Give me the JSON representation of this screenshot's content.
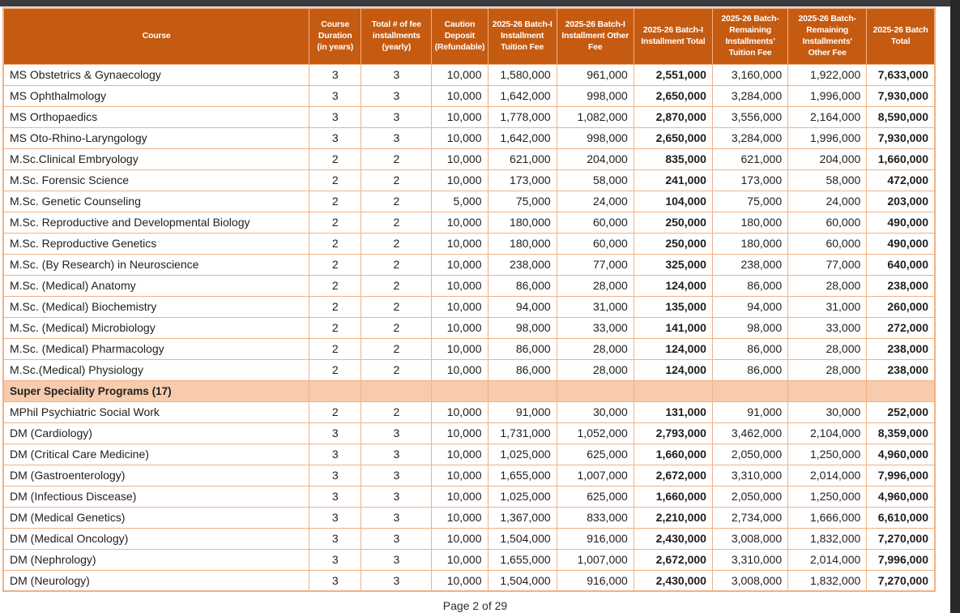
{
  "window": {
    "top_bar_color": "#3b3b3d",
    "right_bar_color": "#29292c"
  },
  "colors": {
    "header_bg": "#C55A11",
    "grid_border": "#F2B183",
    "section_bg": "#F7CBAC",
    "header_text": "#FFFFFF",
    "body_text": "#1E1E1E"
  },
  "footer": {
    "page_label": "Page 2 of 29"
  },
  "table": {
    "headers": [
      "Course",
      "Course\nDuration\n(in years)",
      "Total # of fee\ninstallments\n(yearly)",
      "Caution\nDeposit\n(Refundable)",
      "2025-26 Batch-I\nInstallment\nTuition Fee",
      "2025-26  Batch-I\nInstallment Other\nFee",
      "2025-26  Batch-I\nInstallment Total",
      "2025-26 Batch-\nRemaining\nInstallments'\nTuition Fee",
      "2025-26 Batch-\nRemaining\nInstallments'\nOther Fee",
      "2025-26 Batch\nTotal"
    ],
    "rows": [
      {
        "type": "data",
        "cells": [
          "MS Obstetrics & Gynaecology",
          "3",
          "3",
          "10,000",
          "1,580,000",
          "961,000",
          "2,551,000",
          "3,160,000",
          "1,922,000",
          "7,633,000"
        ]
      },
      {
        "type": "data",
        "cells": [
          "MS Ophthalmology",
          "3",
          "3",
          "10,000",
          "1,642,000",
          "998,000",
          "2,650,000",
          "3,284,000",
          "1,996,000",
          "7,930,000"
        ]
      },
      {
        "type": "data",
        "cells": [
          "MS Orthopaedics",
          "3",
          "3",
          "10,000",
          "1,778,000",
          "1,082,000",
          "2,870,000",
          "3,556,000",
          "2,164,000",
          "8,590,000"
        ]
      },
      {
        "type": "data",
        "cells": [
          "MS Oto-Rhino-Laryngology",
          "3",
          "3",
          "10,000",
          "1,642,000",
          "998,000",
          "2,650,000",
          "3,284,000",
          "1,996,000",
          "7,930,000"
        ]
      },
      {
        "type": "data",
        "cells": [
          "M.Sc.Clinical Embryology",
          "2",
          "2",
          "10,000",
          "621,000",
          "204,000",
          "835,000",
          "621,000",
          "204,000",
          "1,660,000"
        ]
      },
      {
        "type": "data",
        "cells": [
          "M.Sc. Forensic Science",
          "2",
          "2",
          "10,000",
          "173,000",
          "58,000",
          "241,000",
          "173,000",
          "58,000",
          "472,000"
        ]
      },
      {
        "type": "data",
        "cells": [
          "M.Sc. Genetic Counseling",
          "2",
          "2",
          "5,000",
          "75,000",
          "24,000",
          "104,000",
          "75,000",
          "24,000",
          "203,000"
        ]
      },
      {
        "type": "data",
        "cells": [
          "M.Sc. Reproductive and Developmental Biology",
          "2",
          "2",
          "10,000",
          "180,000",
          "60,000",
          "250,000",
          "180,000",
          "60,000",
          "490,000"
        ]
      },
      {
        "type": "data",
        "cells": [
          "M.Sc. Reproductive Genetics",
          "2",
          "2",
          "10,000",
          "180,000",
          "60,000",
          "250,000",
          "180,000",
          "60,000",
          "490,000"
        ]
      },
      {
        "type": "data",
        "cells": [
          "M.Sc. (By Research) in Neuroscience",
          "2",
          "2",
          "10,000",
          "238,000",
          "77,000",
          "325,000",
          "238,000",
          "77,000",
          "640,000"
        ]
      },
      {
        "type": "data",
        "cells": [
          "M.Sc. (Medical) Anatomy",
          "2",
          "2",
          "10,000",
          "86,000",
          "28,000",
          "124,000",
          "86,000",
          "28,000",
          "238,000"
        ]
      },
      {
        "type": "data",
        "cells": [
          "M.Sc. (Medical) Biochemistry",
          "2",
          "2",
          "10,000",
          "94,000",
          "31,000",
          "135,000",
          "94,000",
          "31,000",
          "260,000"
        ]
      },
      {
        "type": "data",
        "cells": [
          "M.Sc. (Medical) Microbiology",
          "2",
          "2",
          "10,000",
          "98,000",
          "33,000",
          "141,000",
          "98,000",
          "33,000",
          "272,000"
        ]
      },
      {
        "type": "data",
        "cells": [
          "M.Sc. (Medical) Pharmacology",
          "2",
          "2",
          "10,000",
          "86,000",
          "28,000",
          "124,000",
          "86,000",
          "28,000",
          "238,000"
        ]
      },
      {
        "type": "data",
        "cells": [
          "M.Sc.(Medical) Physiology",
          "2",
          "2",
          "10,000",
          "86,000",
          "28,000",
          "124,000",
          "86,000",
          "28,000",
          "238,000"
        ]
      },
      {
        "type": "section",
        "cells": [
          "Super Speciality Programs (17)",
          "",
          "",
          "",
          "",
          "",
          "",
          "",
          "",
          ""
        ]
      },
      {
        "type": "data",
        "cells": [
          "MPhil Psychiatric Social Work",
          "2",
          "2",
          "10,000",
          "91,000",
          "30,000",
          "131,000",
          "91,000",
          "30,000",
          "252,000"
        ]
      },
      {
        "type": "data",
        "cells": [
          "DM (Cardiology)",
          "3",
          "3",
          "10,000",
          "1,731,000",
          "1,052,000",
          "2,793,000",
          "3,462,000",
          "2,104,000",
          "8,359,000"
        ]
      },
      {
        "type": "data",
        "cells": [
          "DM (Critical Care Medicine)",
          "3",
          "3",
          "10,000",
          "1,025,000",
          "625,000",
          "1,660,000",
          "2,050,000",
          "1,250,000",
          "4,960,000"
        ]
      },
      {
        "type": "data",
        "cells": [
          "DM (Gastroenterology)",
          "3",
          "3",
          "10,000",
          "1,655,000",
          "1,007,000",
          "2,672,000",
          "3,310,000",
          "2,014,000",
          "7,996,000"
        ]
      },
      {
        "type": "data",
        "cells": [
          "DM (Infectious Discease)",
          "3",
          "3",
          "10,000",
          "1,025,000",
          "625,000",
          "1,660,000",
          "2,050,000",
          "1,250,000",
          "4,960,000"
        ]
      },
      {
        "type": "data",
        "cells": [
          "DM (Medical Genetics)",
          "3",
          "3",
          "10,000",
          "1,367,000",
          "833,000",
          "2,210,000",
          "2,734,000",
          "1,666,000",
          "6,610,000"
        ]
      },
      {
        "type": "data",
        "cells": [
          "DM (Medical Oncology)",
          "3",
          "3",
          "10,000",
          "1,504,000",
          "916,000",
          "2,430,000",
          "3,008,000",
          "1,832,000",
          "7,270,000"
        ]
      },
      {
        "type": "data",
        "cells": [
          "DM (Nephrology)",
          "3",
          "3",
          "10,000",
          "1,655,000",
          "1,007,000",
          "2,672,000",
          "3,310,000",
          "2,014,000",
          "7,996,000"
        ]
      },
      {
        "type": "data",
        "cells": [
          "DM (Neurology)",
          "3",
          "3",
          "10,000",
          "1,504,000",
          "916,000",
          "2,430,000",
          "3,008,000",
          "1,832,000",
          "7,270,000"
        ]
      }
    ]
  }
}
